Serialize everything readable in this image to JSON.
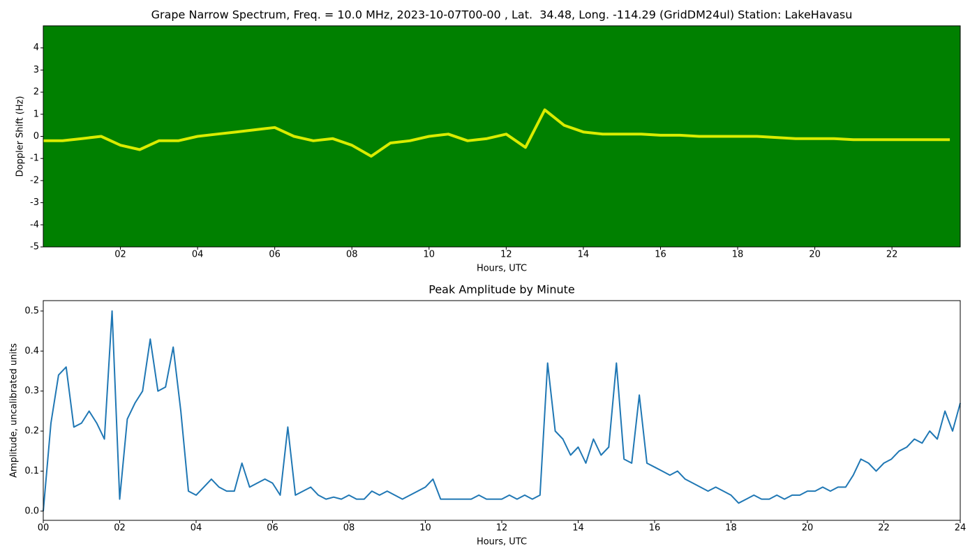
{
  "chart_data": [
    {
      "type": "spectrogram",
      "title": "Grape Narrow Spectrum, Freq. = 10.0 MHz, 2023-10-07T00-00 , Lat.  34.48, Long. -114.29 (GridDM24ul) Station: LakeHavasu",
      "xlabel": "Hours, UTC",
      "ylabel": "Doppler Shift (Hz)",
      "x": [
        0,
        0.5,
        1,
        1.5,
        2,
        2.5,
        3,
        3.5,
        4,
        4.5,
        5,
        5.5,
        6,
        6.5,
        7,
        7.5,
        8,
        8.5,
        9,
        9.5,
        10,
        10.5,
        11,
        11.5,
        12,
        12.5,
        13,
        13.5,
        14,
        14.5,
        15,
        15.5,
        16,
        16.5,
        17,
        17.5,
        18,
        18.5,
        19,
        19.5,
        20,
        20.5,
        21,
        21.5,
        22,
        22.5,
        23,
        23.5
      ],
      "values": [
        -0.2,
        -0.2,
        -0.1,
        0,
        -0.4,
        -0.6,
        -0.2,
        -0.2,
        0,
        0.1,
        0.2,
        0.3,
        0.4,
        0,
        -0.2,
        -0.1,
        -0.4,
        -0.9,
        -0.3,
        -0.2,
        0,
        0.1,
        -0.2,
        -0.1,
        0.1,
        -0.5,
        1.2,
        0.5,
        0.2,
        0.1,
        0.1,
        0.1,
        0.05,
        0.05,
        0,
        0,
        0,
        0,
        -0.05,
        -0.1,
        -0.1,
        -0.1,
        -0.15,
        -0.15,
        -0.15,
        -0.15,
        -0.15,
        -0.15
      ],
      "color": "#ffff00",
      "background": "#008000",
      "xlim": [
        0,
        23.77
      ],
      "ylim": [
        -5,
        5
      ],
      "xticks": [
        {
          "value": 2,
          "label": "02"
        },
        {
          "value": 4,
          "label": "04"
        },
        {
          "value": 6,
          "label": "06"
        },
        {
          "value": 8,
          "label": "08"
        },
        10,
        12,
        14,
        16,
        18,
        20,
        22
      ],
      "yticks": [
        -5,
        -4,
        -3,
        -2,
        -1,
        0,
        1,
        2,
        3,
        4
      ]
    },
    {
      "type": "line",
      "title": "Peak Amplitude by Minute",
      "xlabel": "Hours, UTC",
      "ylabel": "Amplitude, uncalibrated units",
      "x": [
        0,
        0.2,
        0.4,
        0.6,
        0.8,
        1,
        1.2,
        1.4,
        1.6,
        1.8,
        2,
        2.2,
        2.4,
        2.6,
        2.8,
        3,
        3.2,
        3.4,
        3.6,
        3.8,
        4,
        4.2,
        4.4,
        4.6,
        4.8,
        5,
        5.2,
        5.4,
        5.6,
        5.8,
        6,
        6.2,
        6.4,
        6.6,
        6.8,
        7,
        7.2,
        7.4,
        7.6,
        7.8,
        8,
        8.2,
        8.4,
        8.6,
        8.8,
        9,
        9.2,
        9.4,
        9.6,
        9.8,
        10,
        10.2,
        10.4,
        10.6,
        10.8,
        11,
        11.2,
        11.4,
        11.6,
        11.8,
        12,
        12.2,
        12.4,
        12.6,
        12.8,
        13,
        13.2,
        13.4,
        13.6,
        13.8,
        14,
        14.2,
        14.4,
        14.6,
        14.8,
        15,
        15.2,
        15.4,
        15.6,
        15.8,
        16,
        16.2,
        16.4,
        16.6,
        16.8,
        17,
        17.2,
        17.4,
        17.6,
        17.8,
        18,
        18.2,
        18.4,
        18.6,
        18.8,
        19,
        19.2,
        19.4,
        19.6,
        19.8,
        20,
        20.2,
        20.4,
        20.6,
        20.8,
        21,
        21.2,
        21.4,
        21.6,
        21.8,
        22,
        22.2,
        22.4,
        22.6,
        22.8,
        23,
        23.2,
        23.4,
        23.6,
        23.8,
        24
      ],
      "values": [
        0.0,
        0.22,
        0.34,
        0.36,
        0.21,
        0.22,
        0.25,
        0.22,
        0.18,
        0.5,
        0.03,
        0.23,
        0.27,
        0.3,
        0.43,
        0.3,
        0.31,
        0.41,
        0.25,
        0.05,
        0.04,
        0.06,
        0.08,
        0.06,
        0.05,
        0.05,
        0.12,
        0.06,
        0.07,
        0.08,
        0.07,
        0.04,
        0.21,
        0.04,
        0.05,
        0.06,
        0.04,
        0.03,
        0.035,
        0.03,
        0.04,
        0.03,
        0.03,
        0.05,
        0.04,
        0.05,
        0.04,
        0.03,
        0.04,
        0.05,
        0.06,
        0.08,
        0.03,
        0.03,
        0.03,
        0.03,
        0.03,
        0.04,
        0.03,
        0.03,
        0.03,
        0.04,
        0.03,
        0.04,
        0.03,
        0.04,
        0.37,
        0.2,
        0.18,
        0.14,
        0.16,
        0.12,
        0.18,
        0.14,
        0.16,
        0.37,
        0.13,
        0.12,
        0.29,
        0.12,
        0.11,
        0.1,
        0.09,
        0.1,
        0.08,
        0.07,
        0.06,
        0.05,
        0.06,
        0.05,
        0.04,
        0.02,
        0.03,
        0.04,
        0.03,
        0.03,
        0.04,
        0.03,
        0.04,
        0.04,
        0.05,
        0.05,
        0.06,
        0.05,
        0.06,
        0.06,
        0.09,
        0.13,
        0.12,
        0.1,
        0.12,
        0.13,
        0.15,
        0.16,
        0.18,
        0.17,
        0.2,
        0.18,
        0.25,
        0.2,
        0.27
      ],
      "color": "#1f77b4",
      "xlim": [
        0,
        24
      ],
      "ylim": [
        -0.023,
        0.526
      ],
      "xticks": [
        {
          "value": 0,
          "label": "00"
        },
        {
          "value": 2,
          "label": "02"
        },
        {
          "value": 4,
          "label": "04"
        },
        {
          "value": 6,
          "label": "06"
        },
        {
          "value": 8,
          "label": "08"
        },
        10,
        12,
        14,
        16,
        18,
        20,
        22,
        24
      ],
      "yticks": [
        {
          "value": 0,
          "label": "0.0"
        },
        0.1,
        0.2,
        0.3,
        0.4,
        0.5
      ]
    }
  ]
}
